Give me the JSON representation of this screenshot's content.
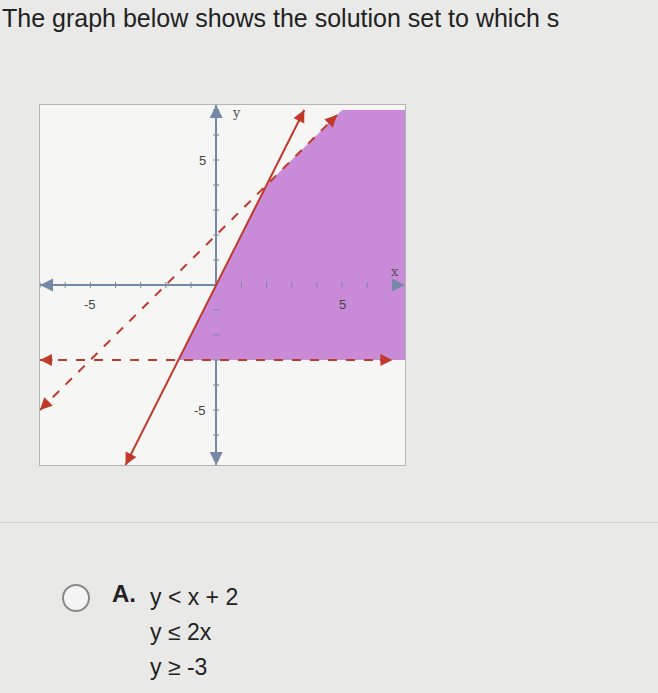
{
  "question": "The graph below shows the solution set to which s",
  "chart_data": {
    "type": "line",
    "x_label": "x",
    "y_label": "y",
    "xlim": [
      -7,
      7.5
    ],
    "ylim": [
      -7.2,
      7.2
    ],
    "xticks": [
      -5,
      5
    ],
    "yticks": [
      -5,
      5
    ],
    "grid": false,
    "series": [
      {
        "type": "area",
        "color": "#c98bd8",
        "x": [
          5,
          7.5,
          7.5,
          -1.5,
          2,
          5
        ],
        "values": [
          7,
          7,
          -3,
          -3,
          4,
          7
        ]
      },
      {
        "type": "line",
        "color": "#c0392b",
        "line_style": "solid",
        "marker": "arrow",
        "x": [
          -3.6,
          3.5
        ],
        "values": [
          -7.2,
          7
        ]
      },
      {
        "type": "line",
        "color": "#c0392b",
        "line_style": "dashed",
        "marker": "arrow",
        "x": [
          -7,
          4.8
        ],
        "values": [
          -5,
          6.8
        ]
      },
      {
        "type": "line",
        "color": "#c0392b",
        "line_style": "dashed",
        "marker": "arrow",
        "x": [
          -7,
          7
        ],
        "values": [
          -3,
          -3
        ]
      }
    ]
  },
  "options": [
    {
      "letter": "A.",
      "lines": [
        "y < x + 2",
        "y ≤ 2x",
        "y ≥ -3"
      ]
    }
  ]
}
